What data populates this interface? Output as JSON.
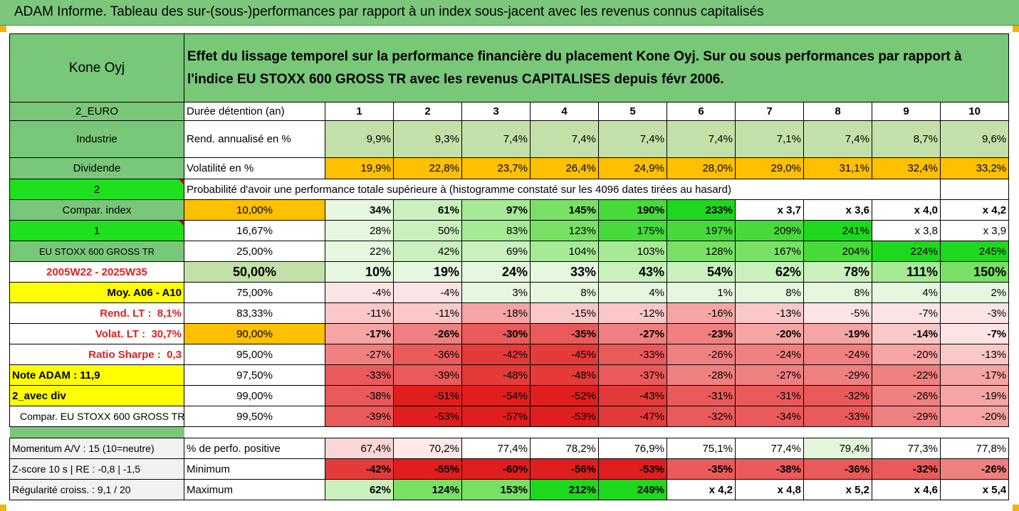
{
  "title": "ADAM Informe. Tableau des sur-(sous-)performances par rapport à un index sous-jacent avec les revenus connus capitalisés",
  "fund": "Kone Oyj",
  "header_text": "Effet du lissage temporel sur la performance financière du placement Kone Oyj. Sur ou sous performances par rapport à l'indice EU STOXX 600 GROSS TR avec les revenus CAPITALISES depuis févr 2006.",
  "left": {
    "currency": "2_EURO",
    "sector": "Industrie",
    "dividend": "Dividende",
    "two": "2",
    "compar_index": "Compar. index",
    "one": "1",
    "index_name": "EU STOXX 600 GROSS TR",
    "period": "2005W22 - 2025W35",
    "moy": "Moy. A06 - A10",
    "rend_lt_label": "Rend. LT :",
    "rend_lt_value": "8,1%",
    "volat_lt_label": "Volat. LT :",
    "volat_lt_value": "30,7%",
    "sharpe_label": "Ratio Sharpe :",
    "sharpe_value": "0,3",
    "note": "Note ADAM : 11,9",
    "avec_div": "2_avec div",
    "compar_eu": "Compar. EU STOXX 600 GROSS TR",
    "momentum": "Momentum A/V : 15 (10=neutre)",
    "zscore": "Z-score 10 s | RE : -0,8 | -1,5",
    "regularite": "Régularité croiss. : 9,1 / 20"
  },
  "labels": {
    "duree": "Durée détention (an)",
    "rend": "Rend. annualisé en %",
    "volat": "Volatilité en %",
    "proba": "Probabilité d'avoir une performance totale supérieure à (histogramme constaté sur les 4096 dates tirées au hasard)",
    "perfo_pos": "% de perfo. positive",
    "minimum": "Minimum",
    "maximum": "Maximum"
  },
  "years": [
    "1",
    "2",
    "3",
    "4",
    "5",
    "6",
    "7",
    "8",
    "9",
    "10"
  ],
  "rend": [
    "9,9%",
    "9,3%",
    "7,4%",
    "7,4%",
    "7,4%",
    "7,4%",
    "7,1%",
    "7,4%",
    "8,7%",
    "9,6%"
  ],
  "volat": [
    "19,9%",
    "22,8%",
    "23,7%",
    "26,4%",
    "24,9%",
    "28,0%",
    "29,0%",
    "31,1%",
    "32,4%",
    "33,2%"
  ],
  "prob_rows": [
    {
      "pct": "10,00%",
      "values": [
        "34%",
        "61%",
        "97%",
        "145%",
        "190%",
        "233%",
        "x 3,7",
        "x 3,6",
        "x 4,0",
        "x 4,2"
      ]
    },
    {
      "pct": "16,67%",
      "values": [
        "28%",
        "50%",
        "83%",
        "123%",
        "175%",
        "197%",
        "209%",
        "241%",
        "x 3,8",
        "x 3,9"
      ]
    },
    {
      "pct": "25,00%",
      "values": [
        "22%",
        "42%",
        "69%",
        "104%",
        "103%",
        "128%",
        "167%",
        "204%",
        "224%",
        "245%"
      ]
    },
    {
      "pct": "50,00%",
      "values": [
        "10%",
        "19%",
        "24%",
        "33%",
        "43%",
        "54%",
        "62%",
        "78%",
        "111%",
        "150%"
      ]
    },
    {
      "pct": "75,00%",
      "values": [
        "-4%",
        "-4%",
        "3%",
        "8%",
        "4%",
        "1%",
        "8%",
        "8%",
        "4%",
        "2%"
      ]
    },
    {
      "pct": "83,33%",
      "values": [
        "-11%",
        "-11%",
        "-18%",
        "-15%",
        "-12%",
        "-16%",
        "-13%",
        "-5%",
        "-7%",
        "-3%"
      ]
    },
    {
      "pct": "90,00%",
      "values": [
        "-17%",
        "-26%",
        "-30%",
        "-35%",
        "-27%",
        "-23%",
        "-20%",
        "-19%",
        "-14%",
        "-7%"
      ]
    },
    {
      "pct": "95,00%",
      "values": [
        "-27%",
        "-36%",
        "-42%",
        "-45%",
        "-33%",
        "-26%",
        "-24%",
        "-24%",
        "-20%",
        "-13%"
      ]
    },
    {
      "pct": "97,50%",
      "values": [
        "-33%",
        "-39%",
        "-48%",
        "-48%",
        "-37%",
        "-28%",
        "-27%",
        "-29%",
        "-22%",
        "-17%"
      ]
    },
    {
      "pct": "99,00%",
      "values": [
        "-38%",
        "-51%",
        "-54%",
        "-52%",
        "-43%",
        "-31%",
        "-31%",
        "-32%",
        "-26%",
        "-19%"
      ]
    },
    {
      "pct": "99,50%",
      "values": [
        "-39%",
        "-53%",
        "-57%",
        "-53%",
        "-47%",
        "-32%",
        "-34%",
        "-33%",
        "-29%",
        "-20%"
      ]
    }
  ],
  "perfo_pos": [
    "67,4%",
    "70,2%",
    "77,4%",
    "78,2%",
    "76,9%",
    "75,1%",
    "77,4%",
    "79,4%",
    "77,3%",
    "77,8%"
  ],
  "minimum": [
    "-42%",
    "-55%",
    "-60%",
    "-56%",
    "-53%",
    "-35%",
    "-38%",
    "-36%",
    "-32%",
    "-26%"
  ],
  "maximum": [
    "62%",
    "124%",
    "153%",
    "212%",
    "249%",
    "x 4,2",
    "x 4,8",
    "x 5,2",
    "x 4,6",
    "x 5,4"
  ],
  "colors": {
    "header_green": "#79c779",
    "orange": "#ffc000",
    "yellow": "#ffff00",
    "lime": "#1ee01e",
    "red_text": "#e02020"
  }
}
